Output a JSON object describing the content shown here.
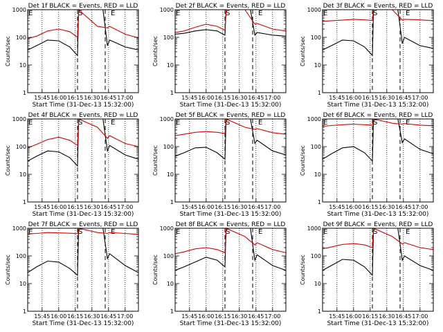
{
  "figure": {
    "line_colors": {
      "events": "#000000",
      "lld": "#dd0000",
      "axes": "#000000"
    },
    "ylabel": "Counts/sec",
    "xlabel": "Start Time (31-Dec-13 15:32:00)",
    "y_ticks": [
      "1",
      "10",
      "100",
      "1000"
    ],
    "x_ticks": [
      "15:45",
      "16:00",
      "16:15",
      "16:30",
      "16:45",
      "17:00"
    ],
    "markers": {
      "E": "E",
      "S": "S"
    }
  },
  "chart_data": [
    {
      "type": "line",
      "title": "Det 1f BLACK = Events, RED = LLD",
      "ylim": [
        1,
        1000
      ],
      "y_scale": "log",
      "x_range": [
        "15:32",
        "17:12"
      ],
      "series": [
        {
          "name": "Events",
          "x": [
            "15:32",
            "15:40",
            "15:50",
            "16:00",
            "16:10",
            "16:17",
            "16:18",
            "16:40",
            "16:44",
            "16:46",
            "17:00",
            "17:12"
          ],
          "y": [
            35,
            50,
            80,
            75,
            45,
            22,
            1000,
            1000,
            50,
            80,
            45,
            35
          ]
        },
        {
          "name": "LLD",
          "x": [
            "15:32",
            "15:40",
            "15:50",
            "16:00",
            "16:10",
            "16:17",
            "16:18",
            "16:35",
            "16:44",
            "16:46",
            "17:00",
            "17:12"
          ],
          "y": [
            90,
            110,
            170,
            200,
            160,
            100,
            1000,
            250,
            220,
            250,
            130,
            95
          ]
        }
      ]
    },
    {
      "type": "line",
      "title": "Det 2f BLACK = Events, RED = LLD",
      "ylim": [
        1,
        1000
      ],
      "y_scale": "log",
      "x_range": [
        "15:32",
        "17:12"
      ],
      "series": [
        {
          "name": "Events",
          "x": [
            "15:32",
            "15:40",
            "15:50",
            "16:00",
            "16:10",
            "16:17",
            "16:18",
            "16:40",
            "16:44",
            "16:46",
            "17:00",
            "17:12"
          ],
          "y": [
            130,
            140,
            170,
            190,
            170,
            120,
            1000,
            1000,
            120,
            150,
            120,
            110
          ]
        },
        {
          "name": "LLD",
          "x": [
            "15:32",
            "15:40",
            "15:50",
            "16:00",
            "16:10",
            "16:17",
            "16:18",
            "16:35",
            "16:44",
            "16:46",
            "17:00",
            "17:12"
          ],
          "y": [
            150,
            170,
            230,
            300,
            250,
            180,
            1000,
            1000,
            300,
            320,
            200,
            170
          ]
        }
      ]
    },
    {
      "type": "line",
      "title": "Det 3f BLACK = Events, RED = LLD",
      "ylim": [
        1,
        1000
      ],
      "y_scale": "log",
      "x_range": [
        "15:32",
        "17:12"
      ],
      "series": [
        {
          "name": "Events",
          "x": [
            "15:32",
            "15:40",
            "15:50",
            "16:00",
            "16:10",
            "16:17",
            "16:18",
            "16:40",
            "16:44",
            "16:46",
            "17:00",
            "17:12"
          ],
          "y": [
            35,
            50,
            80,
            75,
            45,
            22,
            1000,
            1000,
            60,
            100,
            50,
            40
          ]
        },
        {
          "name": "LLD",
          "x": [
            "15:32",
            "15:40",
            "15:50",
            "16:00",
            "16:10",
            "16:17",
            "16:18",
            "16:35",
            "16:44",
            "16:46",
            "17:00",
            "17:12"
          ],
          "y": [
            380,
            400,
            420,
            450,
            430,
            410,
            1000,
            1000,
            420,
            450,
            430,
            400
          ]
        }
      ]
    },
    {
      "type": "line",
      "title": "Det 4f BLACK = Events, RED = LLD",
      "ylim": [
        1,
        1000
      ],
      "y_scale": "log",
      "x_range": [
        "15:32",
        "17:12"
      ],
      "series": [
        {
          "name": "Events",
          "x": [
            "15:32",
            "15:40",
            "15:50",
            "16:00",
            "16:10",
            "16:17",
            "16:18",
            "16:40",
            "16:44",
            "16:46",
            "17:00",
            "17:12"
          ],
          "y": [
            30,
            45,
            70,
            65,
            40,
            20,
            1000,
            1000,
            70,
            110,
            50,
            35
          ]
        },
        {
          "name": "LLD",
          "x": [
            "15:32",
            "15:40",
            "15:50",
            "16:00",
            "16:10",
            "16:17",
            "16:18",
            "16:35",
            "16:44",
            "16:46",
            "17:00",
            "17:12"
          ],
          "y": [
            90,
            120,
            180,
            220,
            170,
            110,
            1000,
            500,
            200,
            250,
            130,
            100
          ]
        }
      ]
    },
    {
      "type": "line",
      "title": "Det 5f BLACK = Events, RED = LLD",
      "ylim": [
        1,
        1000
      ],
      "y_scale": "log",
      "x_range": [
        "15:32",
        "17:12"
      ],
      "series": [
        {
          "name": "Events",
          "x": [
            "15:32",
            "15:40",
            "15:50",
            "16:00",
            "16:10",
            "16:17",
            "16:18",
            "16:40",
            "16:44",
            "16:46",
            "17:00",
            "17:12"
          ],
          "y": [
            45,
            60,
            90,
            95,
            60,
            35,
            1000,
            1000,
            130,
            170,
            70,
            50
          ]
        },
        {
          "name": "LLD",
          "x": [
            "15:32",
            "15:40",
            "15:50",
            "16:00",
            "16:10",
            "16:17",
            "16:18",
            "16:35",
            "16:44",
            "16:46",
            "17:00",
            "17:12"
          ],
          "y": [
            250,
            280,
            330,
            350,
            330,
            300,
            1000,
            500,
            420,
            450,
            320,
            280
          ]
        }
      ]
    },
    {
      "type": "line",
      "title": "Det 6f BLACK = Events, RED = LLD",
      "ylim": [
        1,
        1000
      ],
      "y_scale": "log",
      "x_range": [
        "15:32",
        "17:12"
      ],
      "series": [
        {
          "name": "Events",
          "x": [
            "15:32",
            "15:40",
            "15:50",
            "16:00",
            "16:10",
            "16:17",
            "16:18",
            "16:40",
            "16:44",
            "16:46",
            "17:00",
            "17:12"
          ],
          "y": [
            35,
            55,
            90,
            100,
            60,
            30,
            1000,
            1000,
            140,
            190,
            80,
            55
          ]
        },
        {
          "name": "LLD",
          "x": [
            "15:32",
            "15:40",
            "15:50",
            "16:00",
            "16:10",
            "16:17",
            "16:18",
            "16:35",
            "16:44",
            "16:46",
            "17:00",
            "17:12"
          ],
          "y": [
            550,
            580,
            620,
            650,
            620,
            600,
            1000,
            700,
            650,
            680,
            600,
            570
          ]
        }
      ]
    },
    {
      "type": "line",
      "title": "Det 7f BLACK = Events, RED = LLD",
      "ylim": [
        1,
        1000
      ],
      "y_scale": "log",
      "x_range": [
        "15:32",
        "17:12"
      ],
      "series": [
        {
          "name": "Events",
          "x": [
            "15:32",
            "15:40",
            "15:50",
            "16:00",
            "16:10",
            "16:17",
            "16:18",
            "16:40",
            "16:44",
            "16:46",
            "17:00",
            "17:12"
          ],
          "y": [
            25,
            40,
            65,
            60,
            35,
            20,
            1000,
            1000,
            80,
            120,
            45,
            25
          ]
        },
        {
          "name": "LLD",
          "x": [
            "15:32",
            "15:40",
            "15:50",
            "16:00",
            "16:10",
            "16:17",
            "16:18",
            "16:35",
            "16:44",
            "16:46",
            "17:00",
            "17:12"
          ],
          "y": [
            620,
            650,
            700,
            680,
            660,
            640,
            1000,
            700,
            650,
            700,
            650,
            600
          ]
        }
      ]
    },
    {
      "type": "line",
      "title": "Det 8f BLACK = Events, RED = LLD",
      "ylim": [
        1,
        1000
      ],
      "y_scale": "log",
      "x_range": [
        "15:32",
        "17:12"
      ],
      "series": [
        {
          "name": "Events",
          "x": [
            "15:32",
            "15:40",
            "15:50",
            "16:00",
            "16:10",
            "16:17",
            "16:18",
            "16:40",
            "16:44",
            "16:46",
            "17:00",
            "17:12"
          ],
          "y": [
            30,
            40,
            60,
            90,
            70,
            40,
            1000,
            1000,
            70,
            110,
            45,
            30
          ]
        },
        {
          "name": "LLD",
          "x": [
            "15:32",
            "15:40",
            "15:50",
            "16:00",
            "16:10",
            "16:17",
            "16:18",
            "16:35",
            "16:44",
            "16:46",
            "17:00",
            "17:12"
          ],
          "y": [
            120,
            140,
            180,
            200,
            170,
            130,
            1000,
            500,
            250,
            300,
            170,
            130
          ]
        }
      ]
    },
    {
      "type": "line",
      "title": "Det 9f BLACK = Events, RED = LLD",
      "ylim": [
        1,
        1000
      ],
      "y_scale": "log",
      "x_range": [
        "15:32",
        "17:12"
      ],
      "series": [
        {
          "name": "Events",
          "x": [
            "15:32",
            "15:40",
            "15:50",
            "16:00",
            "16:10",
            "16:17",
            "16:18",
            "16:40",
            "16:44",
            "16:46",
            "17:00",
            "17:12"
          ],
          "y": [
            30,
            45,
            75,
            70,
            40,
            20,
            1000,
            1000,
            70,
            100,
            45,
            30
          ]
        },
        {
          "name": "LLD",
          "x": [
            "15:32",
            "15:40",
            "15:50",
            "16:00",
            "16:10",
            "16:17",
            "16:18",
            "16:35",
            "16:44",
            "16:46",
            "17:00",
            "17:12"
          ],
          "y": [
            180,
            210,
            260,
            280,
            250,
            200,
            1000,
            500,
            270,
            300,
            200,
            170
          ]
        }
      ]
    }
  ]
}
